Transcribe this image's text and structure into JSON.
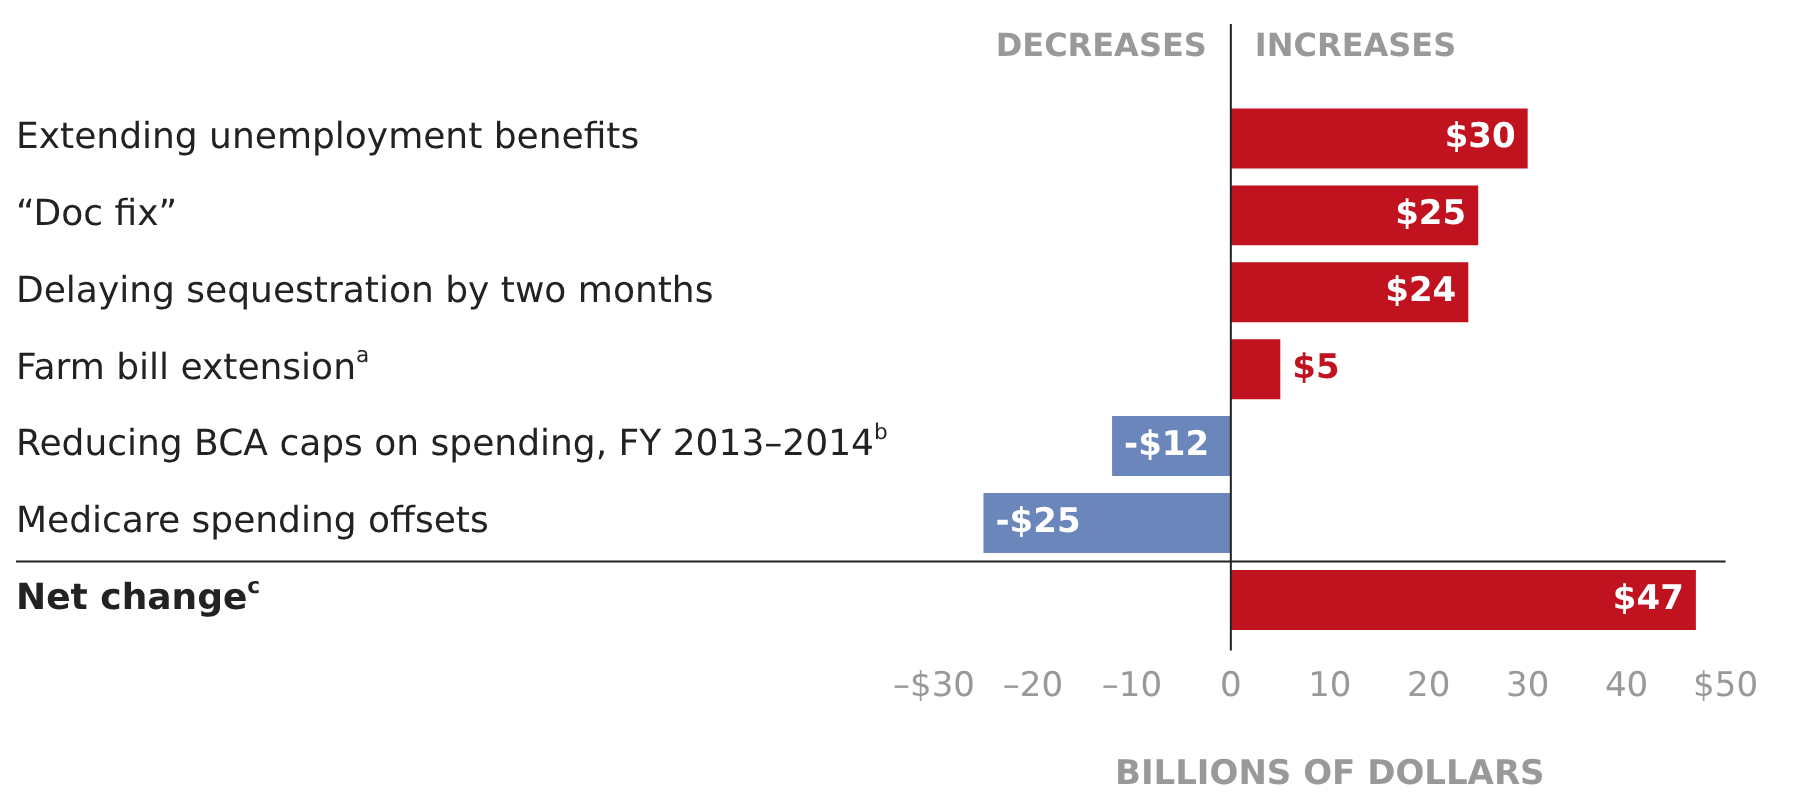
{
  "chart_data": {
    "type": "bar",
    "orientation": "horizontal",
    "categories": [
      "Extending unemployment benefits",
      "“Doc fix”",
      "Delaying sequestration by two months",
      "Farm bill extension$^{a}$",
      "Reducing BCA caps on spending, FY 2013–2014$^{b}$",
      "Medicare spending offsets",
      "Net change$^{c}$"
    ],
    "values": [
      30,
      25,
      24,
      5,
      -12,
      -25,
      47
    ],
    "colors": [
      "#c0121f",
      "#c0121f",
      "#c0121f",
      "#c0121f",
      "#6a86bb",
      "#6a86bb",
      "#c0121f"
    ],
    "value_labels": [
      "$30",
      "$25",
      "$24",
      "$5",
      "-$12",
      "-$25",
      "$47"
    ],
    "xlim": [
      -30,
      50
    ],
    "xticks": [
      {
        "value": -30,
        "label": "–$30"
      },
      {
        "value": -20,
        "label": "–20"
      },
      {
        "value": -10,
        "label": "–10"
      },
      0,
      10,
      20,
      30,
      40,
      {
        "value": 50,
        "label": "$50"
      }
    ],
    "xlabel": "BILLIONS OF DOLLARS",
    "annotations": [
      "DECREASES",
      "INCREASES"
    ],
    "ref_lines": [
      {
        "axis": "x",
        "value": 0,
        "color": "#222222"
      }
    ],
    "grid": false,
    "legend": false
  }
}
